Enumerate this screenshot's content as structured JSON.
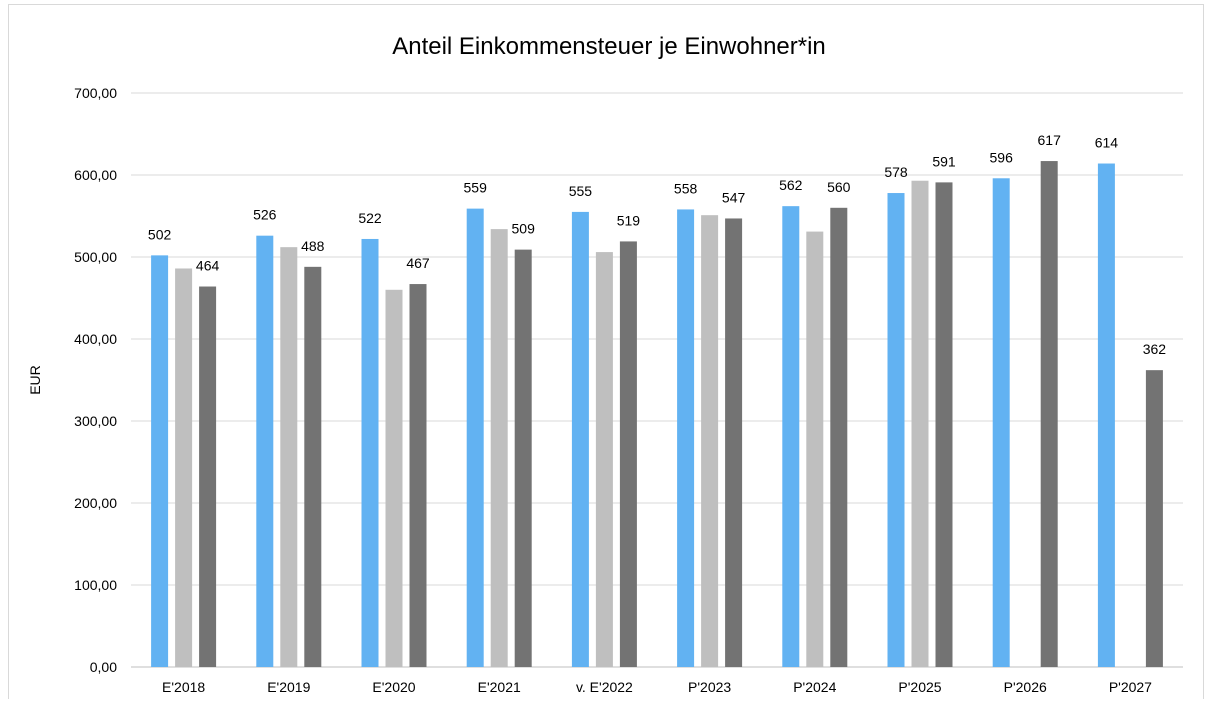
{
  "chart_data": {
    "type": "bar",
    "title": "Anteil Einkommensteuer je Einwohner*in",
    "xlabel": "",
    "ylabel": "EUR",
    "ylim": [
      0,
      700
    ],
    "yticks": [
      "0,00",
      "100,00",
      "200,00",
      "300,00",
      "400,00",
      "500,00",
      "600,00",
      "700,00"
    ],
    "grid": true,
    "legend": "none",
    "categories": [
      "E'2018",
      "E'2019",
      "E'2020",
      "E'2021",
      "v. E'2022",
      "P'2023",
      "P'2024",
      "P'2025",
      "P'2026",
      "P'2027"
    ],
    "series": [
      {
        "color": "#62b2f2",
        "values": [
          502,
          526,
          522,
          559,
          555,
          558,
          562,
          578,
          596,
          614
        ],
        "labels": [
          "502",
          "526",
          "522",
          "559",
          "555",
          "558",
          "562",
          "578",
          "596",
          "614"
        ]
      },
      {
        "color": "#bfbfbf",
        "values": [
          486,
          512,
          460,
          534,
          506,
          551,
          531,
          593,
          null,
          null
        ],
        "labels": [
          null,
          null,
          null,
          null,
          null,
          null,
          null,
          null,
          null,
          null
        ]
      },
      {
        "color": "#737373",
        "values": [
          464,
          488,
          467,
          509,
          519,
          547,
          560,
          591,
          617,
          362
        ],
        "labels": [
          "464",
          "488",
          "467",
          "509",
          "519",
          "547",
          "560",
          "591",
          "617",
          "362"
        ]
      }
    ]
  }
}
